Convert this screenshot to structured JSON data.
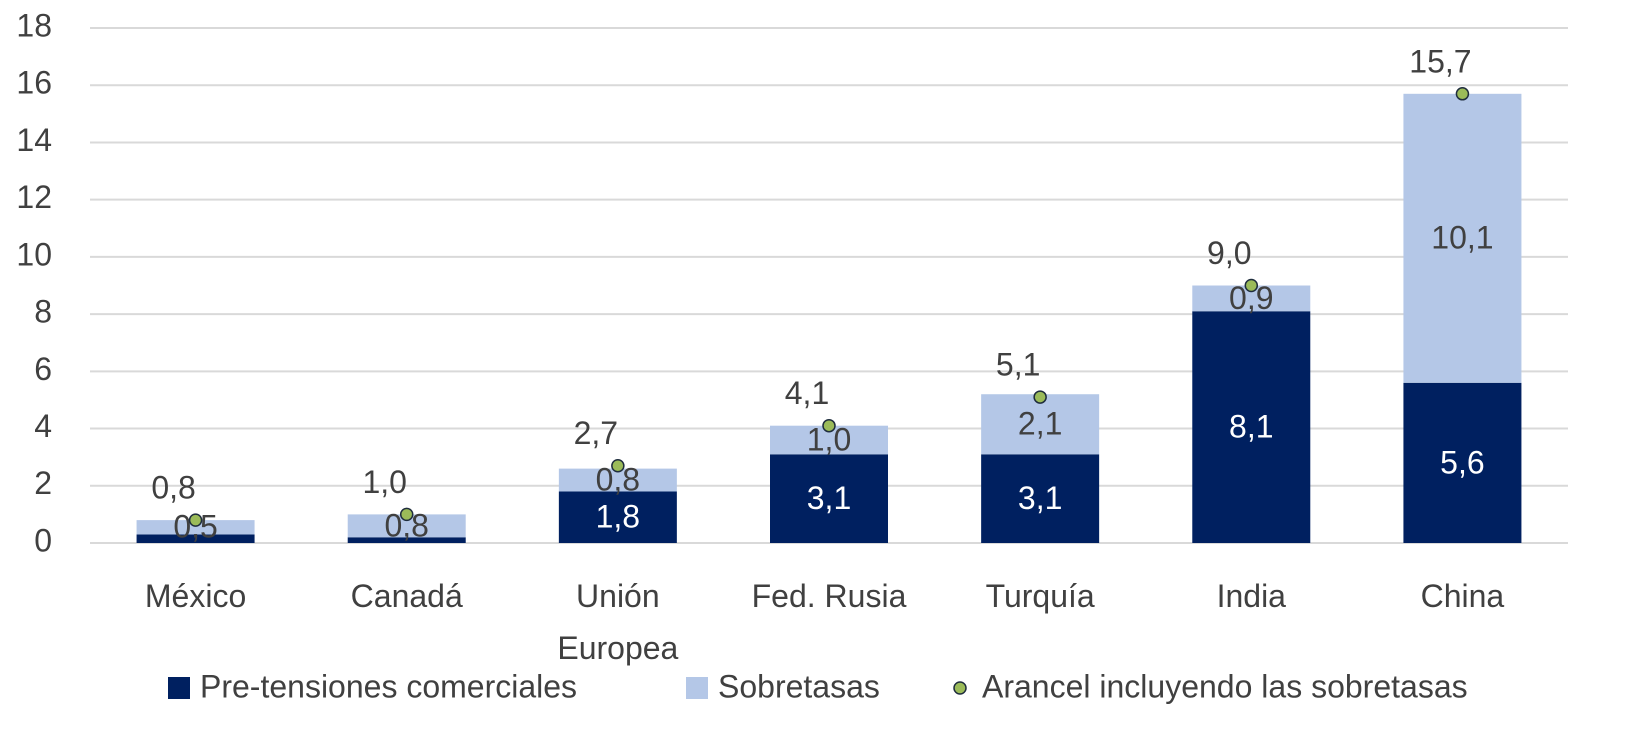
{
  "chart_data": {
    "type": "bar",
    "stacked": true,
    "categories": [
      "México",
      "Canadá",
      "Unión Europea",
      "Fed. Rusia",
      "Turquía",
      "India",
      "China"
    ],
    "series": [
      {
        "name": "Pre-tensiones comerciales",
        "color": "#002060",
        "values": [
          0.3,
          0.2,
          1.8,
          3.1,
          3.1,
          8.1,
          5.6
        ],
        "value_labels": [
          null,
          null,
          "1,8",
          "3,1",
          "3,1",
          "8,1",
          "5,6"
        ]
      },
      {
        "name": "Sobretasas",
        "color": "#b4c7e7",
        "values": [
          0.5,
          0.8,
          0.8,
          1.0,
          2.1,
          0.9,
          10.1
        ],
        "value_labels": [
          "0,5",
          "0,8",
          "0,8",
          "1,0",
          "2,1",
          "0,9",
          "10,1"
        ]
      },
      {
        "name": "Arancel incluyendo las sobretasas",
        "type": "scatter",
        "color": "#9bbb59",
        "values": [
          0.8,
          1.0,
          2.7,
          4.1,
          5.1,
          9.0,
          15.7
        ],
        "value_labels": [
          "0,8",
          "1,0",
          "2,7",
          "4,1",
          "5,1",
          "9,0",
          "15,7"
        ]
      }
    ],
    "ylim": [
      0,
      18
    ],
    "yticks": [
      0,
      2,
      4,
      6,
      8,
      10,
      12,
      14,
      16,
      18
    ],
    "grid": true,
    "legend": "bottom"
  }
}
